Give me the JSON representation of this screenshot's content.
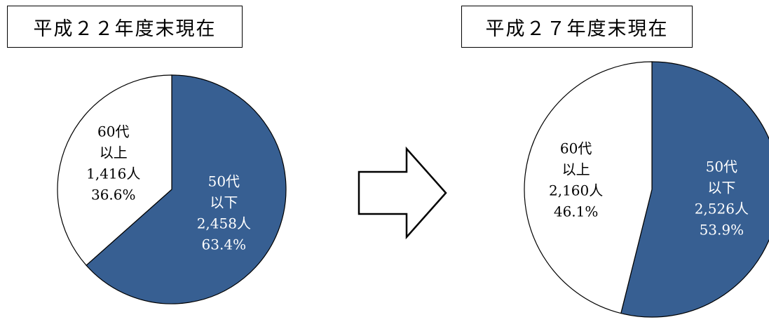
{
  "chart_data": [
    {
      "type": "pie",
      "title": "平成２２年度末現在",
      "slices": [
        {
          "lines": [
            "50代",
            "以下",
            "2,458人",
            "63.4%"
          ],
          "value": 2458,
          "percent": 63.4,
          "color": "#375f92",
          "text_color": "#ffffff"
        },
        {
          "lines": [
            "60代",
            "以上",
            "1,416人",
            "36.6%"
          ],
          "value": 1416,
          "percent": 36.6,
          "color": "#ffffff",
          "text_color": "#000000"
        }
      ]
    },
    {
      "type": "pie",
      "title": "平成２７年度末現在",
      "slices": [
        {
          "lines": [
            "50代",
            "以下",
            "2,526人",
            "53.9%"
          ],
          "value": 2526,
          "percent": 53.9,
          "color": "#375f92",
          "text_color": "#ffffff"
        },
        {
          "lines": [
            "60代",
            "以上",
            "2,160人",
            "46.1%"
          ],
          "value": 2160,
          "percent": 46.1,
          "color": "#ffffff",
          "text_color": "#000000"
        }
      ]
    }
  ],
  "arrow": {
    "icon": "right-arrow-icon",
    "direction": "right"
  }
}
